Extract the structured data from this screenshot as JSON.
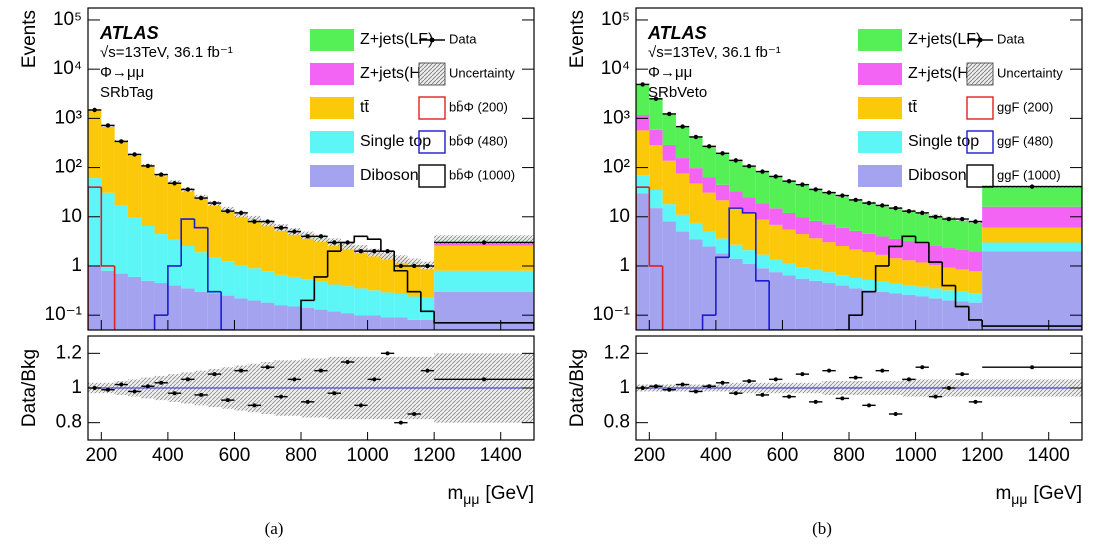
{
  "chart_data": [
    {
      "type": "stacked_histogram",
      "log_y": true,
      "experiment": "ATLAS",
      "energy_label": "√s=13TeV, 36.1 fb⁻¹",
      "process": "Φ→μμ",
      "region": "SRbTag",
      "ylabel": "Events",
      "ratio_ylabel": "Data/Bkg",
      "xlabel": {
        "symbol": "m",
        "subscript": "μμ",
        "unit": "[GeV]"
      },
      "caption": "(a)",
      "bins": [
        160,
        200,
        240,
        280,
        320,
        360,
        400,
        440,
        480,
        520,
        560,
        600,
        640,
        680,
        720,
        760,
        800,
        840,
        880,
        920,
        960,
        1000,
        1040,
        1080,
        1120,
        1160,
        1200,
        1500
      ],
      "xlim": [
        160,
        1500
      ],
      "xticks": [
        200,
        400,
        600,
        800,
        1000,
        1200,
        1400
      ],
      "ylim": [
        0.05,
        175000
      ],
      "yticks": [
        {
          "value": 0.1,
          "label": "10⁻¹"
        },
        1,
        10,
        {
          "value": 100,
          "label": "10²"
        },
        {
          "value": 1000,
          "label": "10³"
        },
        {
          "value": 10000,
          "label": "10⁴"
        },
        {
          "value": 100000,
          "label": "10⁵"
        }
      ],
      "series": [
        {
          "name": "Z+jets(LF)",
          "color": "#55f055",
          "values": [
            15,
            9,
            6,
            4,
            2.5,
            1.6,
            1.2,
            0.9,
            0.7,
            0.5,
            0.4,
            0.35,
            0.3,
            0.25,
            0.2,
            0.18,
            0.16,
            0.14,
            0.12,
            0.1,
            0.09,
            0.08,
            0.07,
            0.06,
            0.05,
            0.05,
            0.4
          ]
        },
        {
          "name": "Z+jets(HF)",
          "color": "#f464f4",
          "values": [
            20,
            12,
            8,
            5,
            3,
            2,
            1.5,
            1.1,
            0.8,
            0.6,
            0.5,
            0.4,
            0.35,
            0.3,
            0.25,
            0.2,
            0.18,
            0.16,
            0.14,
            0.12,
            0.1,
            0.1,
            0.08,
            0.07,
            0.06,
            0.06,
            0.5
          ]
        },
        {
          "name": "tt̄",
          "color": "#fcc80a",
          "values": [
            1400,
            640,
            320,
            165,
            100,
            63,
            45,
            31,
            22,
            16,
            12,
            9.5,
            7.6,
            6.2,
            5,
            4.1,
            3.4,
            2.9,
            2.4,
            2.0,
            1.7,
            1.4,
            1.2,
            1.0,
            0.85,
            0.7,
            1.8
          ]
        },
        {
          "name": "Single top",
          "color": "#5cf6f6",
          "values": [
            60,
            30,
            16,
            9,
            6,
            4,
            3,
            2.2,
            1.6,
            1.2,
            1,
            0.8,
            0.7,
            0.6,
            0.5,
            0.45,
            0.4,
            0.35,
            0.3,
            0.28,
            0.25,
            0.22,
            0.2,
            0.18,
            0.16,
            0.15,
            0.5
          ]
        },
        {
          "name": "Diboson",
          "color": "#a3a3f0",
          "values": [
            1.0,
            0.8,
            0.7,
            0.6,
            0.5,
            0.45,
            0.4,
            0.35,
            0.3,
            0.28,
            0.25,
            0.22,
            0.2,
            0.18,
            0.16,
            0.15,
            0.14,
            0.13,
            0.12,
            0.11,
            0.1,
            0.1,
            0.09,
            0.09,
            0.08,
            0.08,
            0.3
          ]
        }
      ],
      "data": {
        "name": "Data",
        "color": "#000000",
        "values": [
          1480,
          720,
          340,
          185,
          108,
          72,
          48,
          36,
          24,
          19,
          13,
          12,
          8,
          8,
          6,
          5,
          4,
          4,
          3,
          3,
          2,
          2,
          2,
          1,
          1,
          1,
          3
        ]
      },
      "uncertainty": {
        "name": "Uncertainty",
        "values": [
          0.03,
          0.03,
          0.04,
          0.05,
          0.06,
          0.07,
          0.08,
          0.09,
          0.1,
          0.11,
          0.12,
          0.13,
          0.14,
          0.15,
          0.16,
          0.16,
          0.17,
          0.17,
          0.18,
          0.18,
          0.18,
          0.18,
          0.18,
          0.18,
          0.18,
          0.18,
          0.2
        ]
      },
      "signals": [
        {
          "name": "bb̄Φ (200)",
          "color": "#e02020",
          "values": [
            40,
            1,
            0.01,
            0.01,
            0.01,
            0.01,
            0.01,
            0.01,
            0.01,
            0.01,
            0.01,
            0.01,
            0.01,
            0.01,
            0.01,
            0.01,
            0.01,
            0.01,
            0.01,
            0.01,
            0.01,
            0.01,
            0.01,
            0.01,
            0.01,
            0.01,
            0.01
          ]
        },
        {
          "name": "bb̄Φ (480)",
          "color": "#1c1cd0",
          "values": [
            0.01,
            0.01,
            0.01,
            0.01,
            0.01,
            0.1,
            1,
            9,
            6,
            0.3,
            0.05,
            0.01,
            0.01,
            0.01,
            0.01,
            0.01,
            0.01,
            0.01,
            0.01,
            0.01,
            0.01,
            0.01,
            0.01,
            0.01,
            0.01,
            0.01,
            0.01
          ]
        },
        {
          "name": "bb̄Φ (1000)",
          "color": "#000000",
          "values": [
            0.01,
            0.01,
            0.01,
            0.01,
            0.01,
            0.01,
            0.01,
            0.01,
            0.01,
            0.01,
            0.01,
            0.01,
            0.01,
            0.01,
            0.01,
            0.01,
            0.2,
            0.6,
            2,
            3,
            4,
            3.5,
            2,
            0.8,
            0.3,
            0.12,
            0.07
          ]
        }
      ],
      "ratio": {
        "values": [
          1,
          0.99,
          1.02,
          0.98,
          1.01,
          1.03,
          0.97,
          1.05,
          0.96,
          1.08,
          0.93,
          1.1,
          0.9,
          1.12,
          0.95,
          1.05,
          0.92,
          1.1,
          0.97,
          1.15,
          0.9,
          1.05,
          1.2,
          0.8,
          0.85,
          1.1,
          1.05
        ],
        "ylim": [
          0.7,
          1.3
        ],
        "yticks": [
          0.8,
          1,
          1.2
        ]
      }
    },
    {
      "type": "stacked_histogram",
      "log_y": true,
      "experiment": "ATLAS",
      "energy_label": "√s=13TeV, 36.1 fb⁻¹",
      "process": "Φ→μμ",
      "region": "SRbVeto",
      "ylabel": "Events",
      "ratio_ylabel": "Data/Bkg",
      "xlabel": {
        "symbol": "m",
        "subscript": "μμ",
        "unit": "[GeV]"
      },
      "caption": "(b)",
      "bins": [
        160,
        200,
        240,
        280,
        320,
        360,
        400,
        440,
        480,
        520,
        560,
        600,
        640,
        680,
        720,
        760,
        800,
        840,
        880,
        920,
        960,
        1000,
        1040,
        1080,
        1120,
        1160,
        1200,
        1500
      ],
      "xlim": [
        160,
        1500
      ],
      "xticks": [
        200,
        400,
        600,
        800,
        1000,
        1200,
        1400
      ],
      "ylim": [
        0.05,
        175000
      ],
      "yticks": [
        {
          "value": 0.1,
          "label": "10⁻¹"
        },
        1,
        10,
        {
          "value": 100,
          "label": "10²"
        },
        {
          "value": 1000,
          "label": "10³"
        },
        {
          "value": 10000,
          "label": "10⁴"
        },
        {
          "value": 100000,
          "label": "10⁵"
        }
      ],
      "series": [
        {
          "name": "Z+jets(LF)",
          "color": "#55f055",
          "values": [
            3800,
            1900,
            950,
            520,
            320,
            210,
            150,
            110,
            82,
            64,
            51,
            41,
            34,
            28,
            24,
            20,
            17,
            15,
            13,
            11.5,
            10,
            9,
            8,
            7.2,
            6.5,
            5.9,
            25
          ]
        },
        {
          "name": "Z+jets(HF)",
          "color": "#f464f4",
          "values": [
            600,
            300,
            150,
            80,
            50,
            33,
            23,
            17,
            13,
            10,
            8,
            6.5,
            5.4,
            4.6,
            4,
            3.4,
            3,
            2.6,
            2.3,
            2.1,
            1.9,
            1.7,
            1.5,
            1.4,
            1.3,
            1.2,
            10
          ]
        },
        {
          "name": "tt̄",
          "color": "#fcc80a",
          "values": [
            500,
            250,
            120,
            65,
            40,
            26,
            18,
            13,
            9.5,
            7,
            5.5,
            4.3,
            3.5,
            2.8,
            2.3,
            1.9,
            1.6,
            1.4,
            1.2,
            1.0,
            0.9,
            0.8,
            0.7,
            0.6,
            0.55,
            0.5,
            3
          ]
        },
        {
          "name": "Single top",
          "color": "#5cf6f6",
          "values": [
            40,
            20,
            10,
            6,
            4,
            2.5,
            1.8,
            1.3,
            1,
            0.8,
            0.6,
            0.5,
            0.4,
            0.35,
            0.3,
            0.25,
            0.22,
            0.2,
            0.18,
            0.16,
            0.15,
            0.14,
            0.13,
            0.12,
            0.11,
            0.1,
            1
          ]
        },
        {
          "name": "Diboson",
          "color": "#a3a3f0",
          "values": [
            30,
            15,
            8,
            5,
            3.5,
            2.5,
            1.8,
            1.4,
            1.1,
            0.9,
            0.75,
            0.65,
            0.55,
            0.5,
            0.45,
            0.4,
            0.35,
            0.32,
            0.3,
            0.28,
            0.26,
            0.24,
            0.22,
            0.2,
            0.19,
            0.18,
            2
          ]
        }
      ],
      "data": {
        "name": "Data",
        "color": "#000000",
        "values": [
          4900,
          2500,
          1230,
          680,
          420,
          270,
          195,
          140,
          107,
          83,
          66,
          53,
          45,
          36,
          31,
          27,
          22,
          19,
          17,
          15,
          13,
          12,
          10,
          9,
          9,
          8,
          41
        ]
      },
      "uncertainty": {
        "name": "Uncertainty",
        "values": [
          0.02,
          0.02,
          0.02,
          0.02,
          0.02,
          0.02,
          0.02,
          0.03,
          0.03,
          0.03,
          0.03,
          0.03,
          0.03,
          0.03,
          0.04,
          0.04,
          0.04,
          0.04,
          0.04,
          0.04,
          0.05,
          0.05,
          0.05,
          0.05,
          0.05,
          0.05,
          0.05
        ]
      },
      "signals": [
        {
          "name": "ggF (200)",
          "color": "#e02020",
          "values": [
            40,
            1,
            0.01,
            0.01,
            0.01,
            0.01,
            0.01,
            0.01,
            0.01,
            0.01,
            0.01,
            0.01,
            0.01,
            0.01,
            0.01,
            0.01,
            0.01,
            0.01,
            0.01,
            0.01,
            0.01,
            0.01,
            0.01,
            0.01,
            0.01,
            0.01,
            0.01
          ]
        },
        {
          "name": "ggF (480)",
          "color": "#1c1cd0",
          "values": [
            0.01,
            0.01,
            0.01,
            0.01,
            0.01,
            0.1,
            1.5,
            15,
            12,
            0.5,
            0.05,
            0.01,
            0.01,
            0.01,
            0.01,
            0.01,
            0.01,
            0.01,
            0.01,
            0.01,
            0.01,
            0.01,
            0.01,
            0.01,
            0.01,
            0.01,
            0.01
          ]
        },
        {
          "name": "ggF (1000)",
          "color": "#000000",
          "values": [
            0.01,
            0.01,
            0.01,
            0.01,
            0.01,
            0.01,
            0.01,
            0.01,
            0.01,
            0.01,
            0.01,
            0.01,
            0.01,
            0.01,
            0.01,
            0.05,
            0.1,
            0.3,
            1,
            2.5,
            4,
            3,
            1.2,
            0.4,
            0.15,
            0.08,
            0.06
          ]
        }
      ],
      "ratio": {
        "values": [
          1,
          1.01,
          0.99,
          1.02,
          0.98,
          1.01,
          1.03,
          0.97,
          1.04,
          0.96,
          1.05,
          0.95,
          1.08,
          0.92,
          1.1,
          0.94,
          1.06,
          0.9,
          1.1,
          0.85,
          1.05,
          1.12,
          0.95,
          1,
          1.08,
          0.92,
          1.12
        ],
        "ylim": [
          0.7,
          1.3
        ],
        "yticks": [
          0.8,
          1,
          1.2
        ]
      }
    }
  ]
}
